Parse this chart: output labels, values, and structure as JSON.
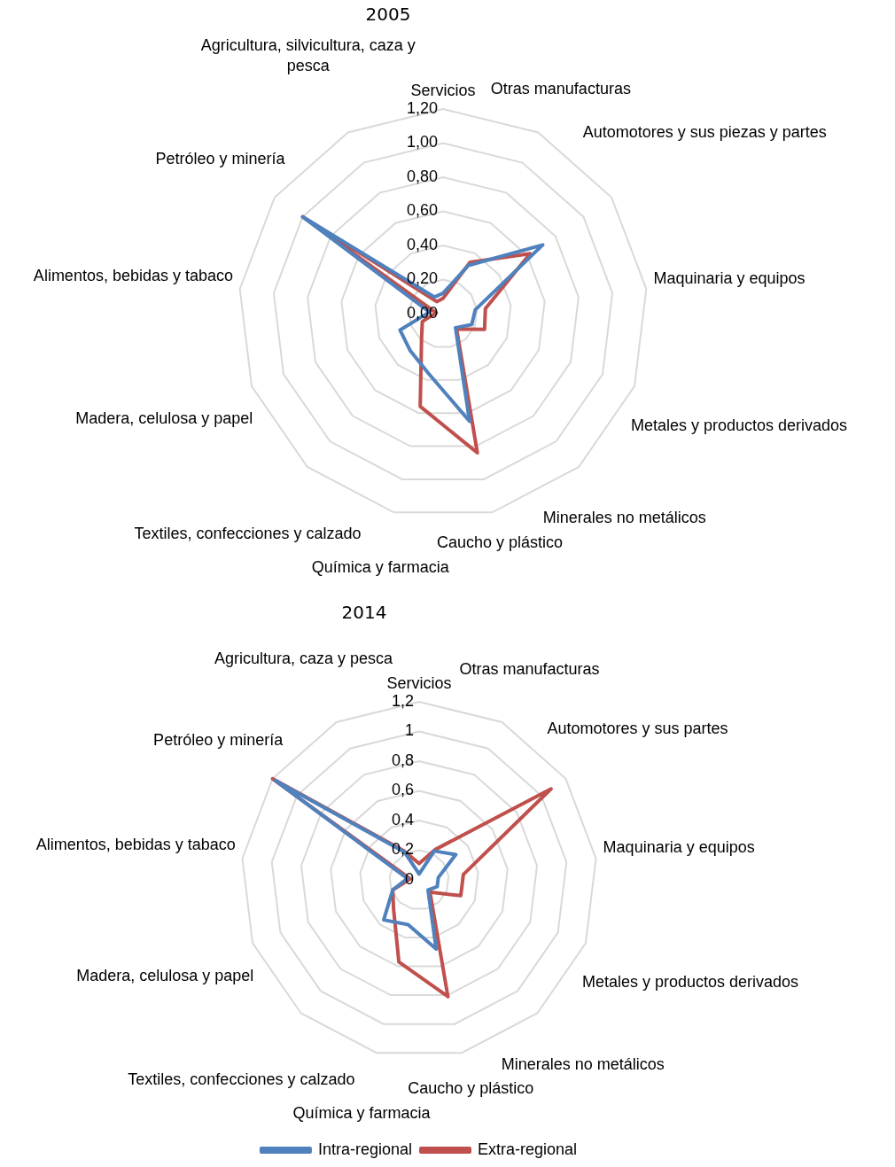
{
  "chart_data": [
    {
      "type": "radar",
      "title": "2005",
      "categories": [
        "Servicios",
        "Otras manufacturas",
        "Automotores y sus piezas y partes",
        "Maquinaria y equipos",
        "Metales y productos derivados",
        "Minerales no metálicos",
        "Caucho y plástico",
        "Química y farmacia",
        "Textiles, confecciones y calzado",
        "Madera, celulosa y papel",
        "Alimentos, bebidas y tabaco",
        "Petróleo y minería",
        "Agricultura, silvicultura, caza y pesca"
      ],
      "series": [
        {
          "color": "#4f81bd",
          "values": [
            0.12,
            0.32,
            0.71,
            0.19,
            0.18,
            0.11,
            0.65,
            0.36,
            0.29,
            0.27,
            0.08,
            1.0,
            0.11
          ]
        },
        {
          "color": "#c0504d",
          "values": [
            0.09,
            0.34,
            0.62,
            0.25,
            0.26,
            0.12,
            0.84,
            0.56,
            0.19,
            0.13,
            0.04,
            1.0,
            0.08
          ]
        }
      ],
      "ylim": [
        0,
        1.2
      ],
      "yticks": [
        {
          "value": 0,
          "label": "0,00"
        },
        {
          "value": 0.2,
          "label": "0,20"
        },
        {
          "value": 0.4,
          "label": "0,40"
        },
        {
          "value": 0.6,
          "label": "0,60"
        },
        {
          "value": 0.8,
          "label": "0,80"
        },
        {
          "value": 1,
          "label": "1,00"
        },
        {
          "value": 1.2,
          "label": "1,20"
        }
      ],
      "grid": true,
      "legend": false,
      "marker": "none"
    },
    {
      "type": "radar",
      "title": "2014",
      "categories": [
        "Servicios",
        "Otras manufacturas",
        "Automotores y sus partes",
        "Maquinaria y equipos",
        "Metales y productos derivados",
        "Minerales no metálicos",
        "Caucho y plástico",
        "Química y farmacia",
        "Textiles, confecciones y calzado",
        "Madera, celulosa y papel",
        "Alimentos, bebidas y tabaco",
        "Petróleo y minería",
        "Agricultura, caza y pesca"
      ],
      "series": [
        {
          "name": "Intra-regional",
          "color": "#4f81bd",
          "values": [
            0.04,
            0.22,
            0.3,
            0.13,
            0.13,
            0.09,
            0.48,
            0.31,
            0.36,
            0.19,
            0.08,
            1.18,
            0.21
          ]
        },
        {
          "name": "Extra-regional",
          "color": "#c0504d",
          "values": [
            0.11,
            0.23,
            1.08,
            0.3,
            0.3,
            0.11,
            0.81,
            0.57,
            0.26,
            0.19,
            0.06,
            1.2,
            0.22
          ]
        }
      ],
      "ylim": [
        0,
        1.2
      ],
      "yticks": [
        0,
        {
          "value": 0.2,
          "label": "0,2"
        },
        {
          "value": 0.4,
          "label": "0,4"
        },
        {
          "value": 0.6,
          "label": "0,6"
        },
        {
          "value": 0.8,
          "label": "0,8"
        },
        1,
        {
          "value": 1.2,
          "label": "1,2"
        }
      ],
      "grid": true,
      "legend": "bottom",
      "marker": "none"
    }
  ]
}
